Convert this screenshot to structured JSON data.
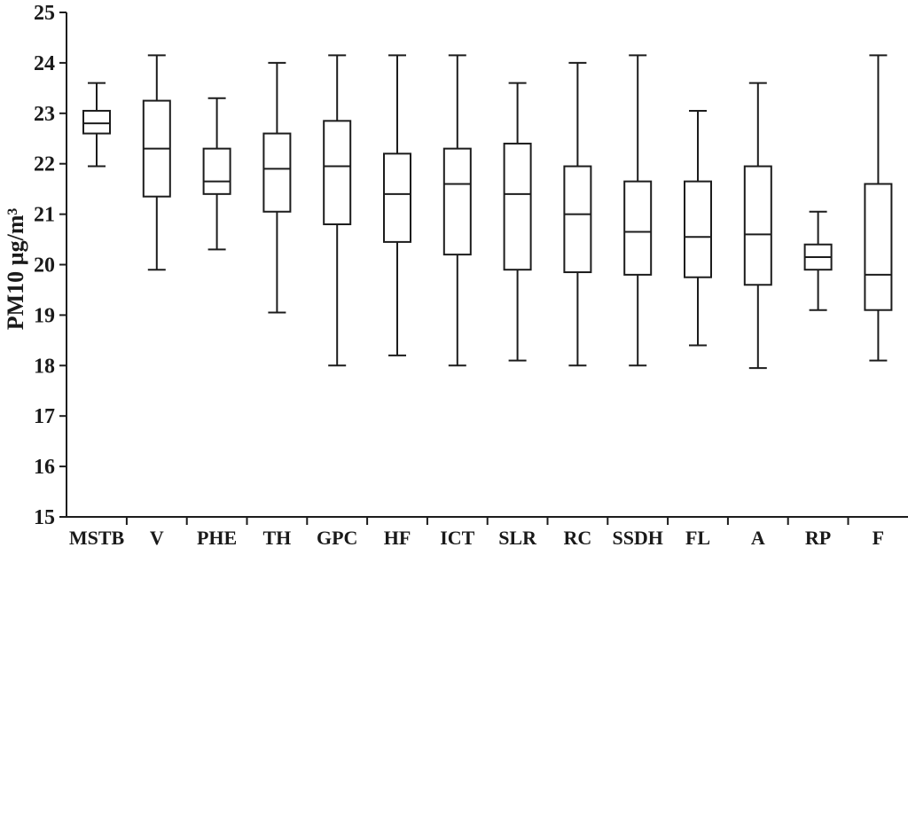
{
  "chart_data": {
    "type": "boxplot",
    "title": "",
    "xlabel": "",
    "ylabel": "PM10 µg/m³",
    "ylim": [
      15,
      25
    ],
    "ytick_step": 1,
    "ytick_labels": [
      "15",
      "16",
      "17",
      "18",
      "19",
      "20",
      "21",
      "22",
      "23",
      "24",
      "25"
    ],
    "grid": false,
    "legend": null,
    "categories": [
      "MSTB",
      "V",
      "PHE",
      "TH",
      "GPC",
      "HF",
      "ICT",
      "SLR",
      "RC",
      "SSDH",
      "FL",
      "A",
      "RP",
      "F"
    ],
    "series": [
      {
        "category": "MSTB",
        "min": 21.95,
        "q1": 22.6,
        "median": 22.8,
        "q3": 23.05,
        "max": 23.6
      },
      {
        "category": "V",
        "min": 19.9,
        "q1": 21.35,
        "median": 22.3,
        "q3": 23.25,
        "max": 24.15
      },
      {
        "category": "PHE",
        "min": 20.3,
        "q1": 21.4,
        "median": 21.65,
        "q3": 22.3,
        "max": 23.3
      },
      {
        "category": "TH",
        "min": 19.05,
        "q1": 21.05,
        "median": 21.9,
        "q3": 22.6,
        "max": 24.0
      },
      {
        "category": "GPC",
        "min": 18.0,
        "q1": 20.8,
        "median": 21.95,
        "q3": 22.85,
        "max": 24.15
      },
      {
        "category": "HF",
        "min": 18.2,
        "q1": 20.45,
        "median": 21.4,
        "q3": 22.2,
        "max": 24.15
      },
      {
        "category": "ICT",
        "min": 18.0,
        "q1": 20.2,
        "median": 21.6,
        "q3": 22.3,
        "max": 24.15
      },
      {
        "category": "SLR",
        "min": 18.1,
        "q1": 19.9,
        "median": 21.4,
        "q3": 22.4,
        "max": 23.6
      },
      {
        "category": "RC",
        "min": 18.0,
        "q1": 19.85,
        "median": 21.0,
        "q3": 21.95,
        "max": 24.0
      },
      {
        "category": "SSDH",
        "min": 18.0,
        "q1": 19.8,
        "median": 20.65,
        "q3": 21.65,
        "max": 24.15
      },
      {
        "category": "FL",
        "min": 18.4,
        "q1": 19.75,
        "median": 20.55,
        "q3": 21.65,
        "max": 23.05
      },
      {
        "category": "A",
        "min": 17.95,
        "q1": 19.6,
        "median": 20.6,
        "q3": 21.95,
        "max": 23.6
      },
      {
        "category": "RP",
        "min": 19.1,
        "q1": 19.9,
        "median": 20.15,
        "q3": 20.4,
        "max": 21.05
      },
      {
        "category": "F",
        "min": 18.1,
        "q1": 19.1,
        "median": 19.8,
        "q3": 21.6,
        "max": 24.15
      }
    ]
  },
  "colors": {
    "line": "#1c1c1c",
    "text": "#1a1a1a",
    "background": "#ffffff"
  }
}
